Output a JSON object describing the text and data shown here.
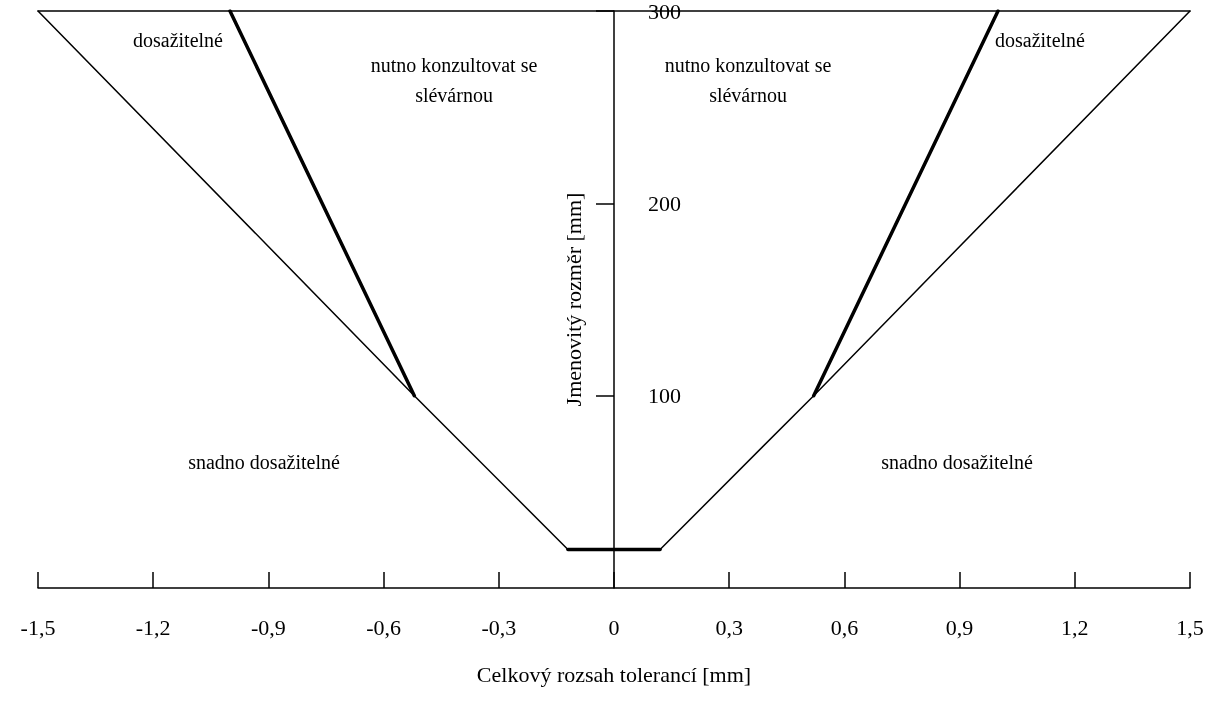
{
  "chart_data": {
    "type": "line",
    "xlabel": "Celkový rozsah tolerancí [mm]",
    "ylabel": "Jmenovitý rozměr [mm]",
    "xlim": [
      -1.5,
      1.5
    ],
    "xticks": [
      {
        "value": -1.5,
        "label": "-1,5"
      },
      {
        "value": -1.2,
        "label": "-1,2"
      },
      {
        "value": -0.9,
        "label": "-0,9"
      },
      {
        "value": -0.6,
        "label": "-0,6"
      },
      {
        "value": -0.3,
        "label": "-0,3"
      },
      0,
      {
        "value": 0.3,
        "label": "0,3"
      },
      {
        "value": 0.6,
        "label": "0,6"
      },
      {
        "value": 0.9,
        "label": "0,9"
      },
      {
        "value": 1.2,
        "label": "1,2"
      },
      {
        "value": 1.5,
        "label": "1,5"
      }
    ],
    "ylim": [
      0,
      300
    ],
    "yticks": [
      100,
      200,
      300
    ],
    "grid": false,
    "marker": "none",
    "line_style": "solid",
    "series": [
      {
        "color": "#000000",
        "x": [
          -1.5,
          -0.52,
          -0.12
        ],
        "values": [
          300,
          100,
          20
        ]
      },
      {
        "color": "#000000",
        "x": [
          -0.12,
          0.12
        ],
        "values": [
          20,
          20
        ]
      },
      {
        "color": "#000000",
        "x": [
          0.12,
          0.52,
          1.5
        ],
        "values": [
          20,
          100,
          300
        ]
      },
      {
        "color": "#000000",
        "x": [
          -1.0,
          -0.52
        ],
        "values": [
          300,
          100
        ]
      },
      {
        "color": "#000000",
        "x": [
          0.52,
          1.0
        ],
        "values": [
          100,
          300
        ]
      }
    ],
    "annotations": [
      "dosažitelné",
      "nutno konzultovat se\nslévárnou",
      "nutno konzultovat se\nslévárnou",
      "dosažitelné",
      "snadno dosažitelné",
      "snadno dosažitelné"
    ]
  }
}
